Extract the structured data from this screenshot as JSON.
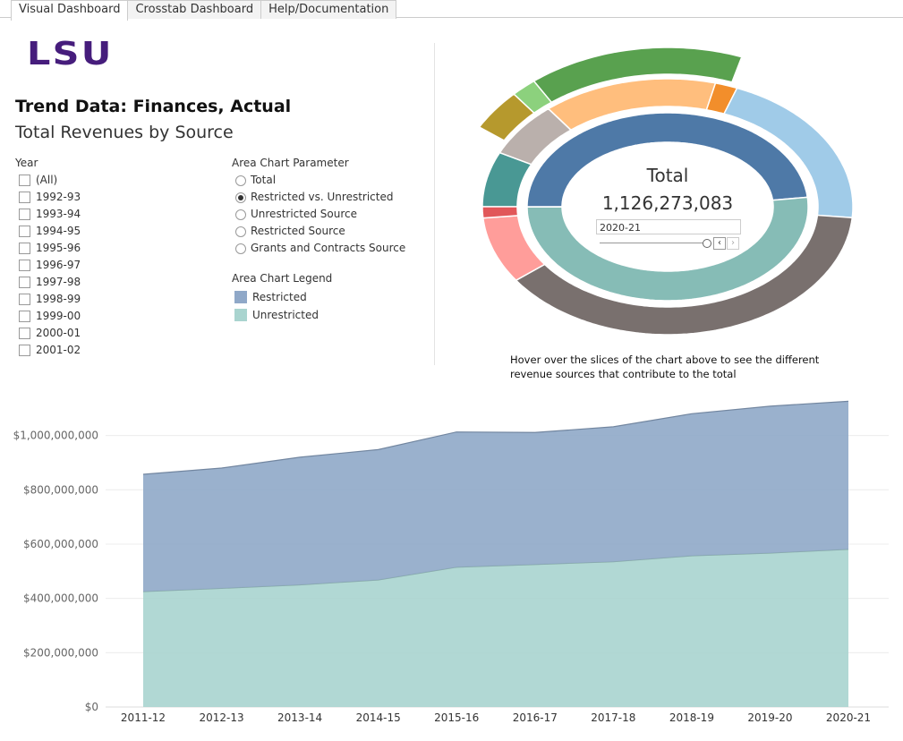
{
  "tabs": [
    "Visual Dashboard",
    "Crosstab Dashboard",
    "Help/Documentation"
  ],
  "active_tab": 0,
  "logo": "LSU",
  "title": "Trend Data: Finances, Actual",
  "subtitle": "Total Revenues by Source",
  "year_filter": {
    "label": "Year",
    "options": [
      "(All)",
      "1992-93",
      "1993-94",
      "1994-95",
      "1995-96",
      "1996-97",
      "1997-98",
      "1998-99",
      "1999-00",
      "2000-01",
      "2001-02"
    ]
  },
  "parameter": {
    "label": "Area Chart Parameter",
    "options": [
      "Total",
      "Restricted vs. Unrestricted",
      "Unrestricted Source",
      "Restricted Source",
      "Grants and Contracts Source"
    ],
    "selected": 1
  },
  "legend_panel": {
    "label": "Area Chart Legend"
  },
  "hover_note": "Hover over the slices of the chart above to see the different revenue sources that contribute to the total",
  "chart_data": [
    {
      "type": "area",
      "categories": [
        "2011-12",
        "2012-13",
        "2013-14",
        "2014-15",
        "2015-16",
        "2016-17",
        "2017-18",
        "2018-19",
        "2019-20",
        "2020-21"
      ],
      "series": [
        {
          "name": "Restricted",
          "color": "#8fa8c8",
          "values": [
            432000000,
            443000000,
            470000000,
            480000000,
            498000000,
            486000000,
            497000000,
            523000000,
            541000000,
            545000000
          ]
        },
        {
          "name": "Unrestricted",
          "color": "#a9d4cf",
          "values": [
            425000000,
            437000000,
            450000000,
            468000000,
            515000000,
            525000000,
            535000000,
            557000000,
            567000000,
            581000000
          ]
        }
      ],
      "stacked": true,
      "ylim": [
        0,
        1180000000
      ],
      "yticks": [
        {
          "value": 0,
          "label": "$0"
        },
        {
          "value": 200000000,
          "label": "$200,000,000"
        },
        {
          "value": 400000000,
          "label": "$400,000,000"
        },
        {
          "value": 600000000,
          "label": "$600,000,000"
        },
        {
          "value": 800000000,
          "label": "$800,000,000"
        },
        {
          "value": 1000000000,
          "label": "$1,000,000,000"
        }
      ],
      "grid": true
    },
    {
      "type": "donut",
      "title": "Total",
      "total": {
        "value": 1126273083,
        "label": "1,126,273,083"
      },
      "selector": "2020-21",
      "rings": [
        {
          "values": [
            545000000,
            581000000
          ],
          "colors": [
            "#4e79a7",
            "#86bcb6"
          ]
        },
        {
          "values": [
            172000000,
            22000000,
            228000000,
            438000000,
            94000000,
            16000000,
            78000000,
            78000000
          ],
          "colors": [
            "#ffbe7d",
            "#f28e2b",
            "#a0cbe8",
            "#79706e",
            "#ff9d9a",
            "#e15759",
            "#499894",
            "#bab0ac"
          ]
        },
        {
          "values": [
            47000000,
            22000000,
            181000000
          ],
          "colors": [
            "#b6992d",
            "#8cd17d",
            "#59a14f"
          ]
        }
      ]
    }
  ]
}
